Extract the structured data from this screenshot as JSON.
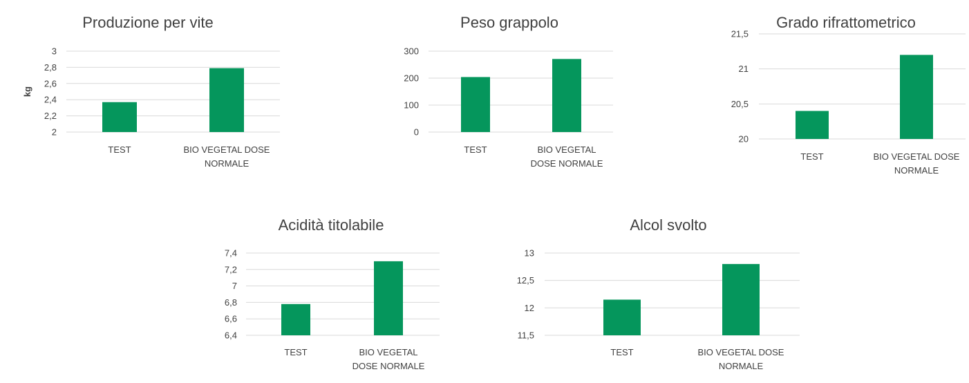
{
  "chart_data": [
    {
      "type": "bar",
      "title": "Produzione per vite",
      "ylabel": "kg",
      "categories": [
        [
          "TEST"
        ],
        [
          "BIO VEGETAL DOSE",
          "NORMALE"
        ]
      ],
      "values": [
        2.37,
        2.79
      ],
      "ylim": [
        2,
        3
      ],
      "yticks": [
        "2",
        "2,2",
        "2,4",
        "2,6",
        "2,8",
        "3"
      ],
      "color": "#05965c",
      "grid": true
    },
    {
      "type": "bar",
      "title": "Peso grappolo",
      "ylabel": "",
      "categories": [
        [
          "TEST"
        ],
        [
          "BIO VEGETAL",
          "DOSE NORMALE"
        ]
      ],
      "values": [
        204,
        271
      ],
      "ylim": [
        0,
        300
      ],
      "yticks": [
        "0",
        "100",
        "200",
        "300"
      ],
      "color": "#05965c",
      "grid": true
    },
    {
      "type": "bar",
      "title": "Grado rifrattometrico",
      "ylabel": "",
      "categories": [
        [
          "TEST"
        ],
        [
          "BIO VEGETAL DOSE",
          "NORMALE"
        ]
      ],
      "values": [
        20.4,
        21.2
      ],
      "ylim": [
        20,
        21.5
      ],
      "yticks": [
        "20",
        "20,5",
        "21",
        "21,5"
      ],
      "color": "#05965c",
      "grid": true
    },
    {
      "type": "bar",
      "title": "Acidità titolabile",
      "ylabel": "",
      "categories": [
        [
          "TEST"
        ],
        [
          "BIO VEGETAL",
          "DOSE NORMALE"
        ]
      ],
      "values": [
        6.78,
        7.3
      ],
      "ylim": [
        6.4,
        7.4
      ],
      "yticks": [
        "6,4",
        "6,6",
        "6,8",
        "7",
        "7,2",
        "7,4"
      ],
      "color": "#05965c",
      "grid": true
    },
    {
      "type": "bar",
      "title": "Alcol svolto",
      "ylabel": "",
      "categories": [
        [
          "TEST"
        ],
        [
          "BIO VEGETAL DOSE",
          "NORMALE"
        ]
      ],
      "values": [
        12.15,
        12.8
      ],
      "ylim": [
        11.5,
        13
      ],
      "yticks": [
        "11,5",
        "12",
        "12,5",
        "13"
      ],
      "color": "#05965c",
      "grid": true
    }
  ]
}
